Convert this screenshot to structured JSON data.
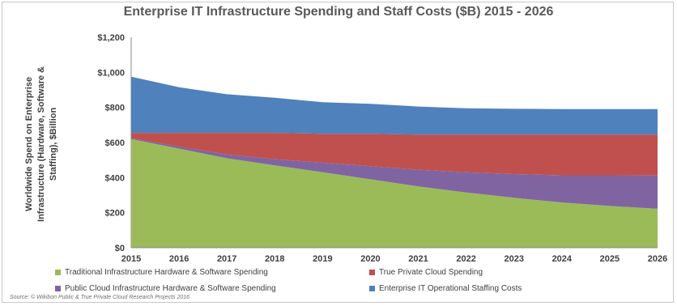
{
  "chart_data": {
    "type": "area",
    "title": "Enterprise IT Infrastructure Spending and Staff Costs ($B) 2015 - 2026",
    "ylabel": "Worldwide Spend on Enterprise Infrastructure (Hardware, Software & Staffing), $Billion",
    "xlabel": "",
    "x": [
      "2015",
      "2016",
      "2017",
      "2018",
      "2019",
      "2020",
      "2021",
      "2022",
      "2023",
      "2024",
      "2025",
      "2026"
    ],
    "ylim": [
      0,
      1200
    ],
    "yticks": [
      "$0",
      "$200",
      "$400",
      "$600",
      "$800",
      "$1,000",
      "$1,200"
    ],
    "stacked": true,
    "grid": false,
    "legend_position": "bottom",
    "series": [
      {
        "name": "Traditional Infrastructure Hardware & Software Spending",
        "color": "#9BBB59",
        "values": [
          620,
          565,
          510,
          470,
          430,
          390,
          350,
          315,
          285,
          258,
          238,
          222
        ]
      },
      {
        "name": "Public Cloud Infrastructure Hardware & Software Spending",
        "color": "#8064A2",
        "values": [
          5,
          12,
          22,
          35,
          55,
          75,
          95,
          115,
          135,
          155,
          175,
          190
        ]
      },
      {
        "name": "True Private Cloud Spending",
        "color": "#C0504D",
        "values": [
          30,
          78,
          123,
          150,
          165,
          185,
          200,
          215,
          225,
          232,
          232,
          233
        ]
      },
      {
        "name": "Enterprise IT Operational Staffing Costs",
        "color": "#4F81BD",
        "values": [
          320,
          260,
          220,
          200,
          180,
          170,
          160,
          150,
          147,
          145,
          145,
          145
        ]
      }
    ],
    "source": "Source: © Wikibon Public & True Private Cloud Research Projects 2016"
  }
}
